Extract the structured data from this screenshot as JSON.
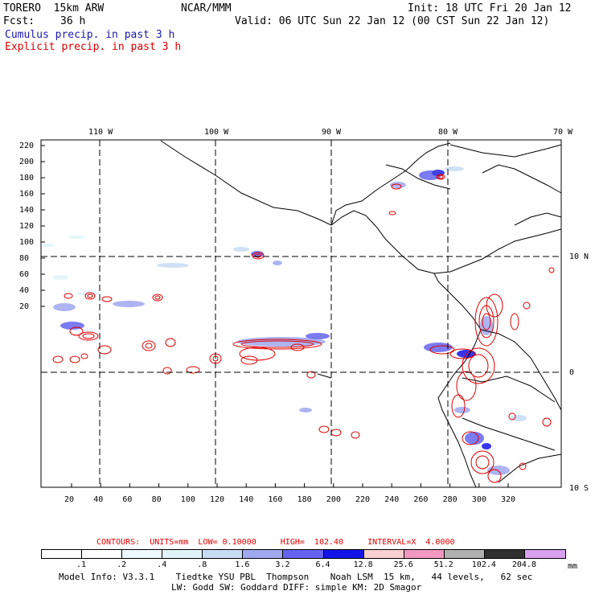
{
  "header": {
    "model": "TORERO  15km ARW",
    "org": "NCAR/MMM",
    "init": "Init: 18 UTC Fri 20 Jan 12",
    "fcst_label": "Fcst:",
    "fcst_hours": "36 h",
    "valid": "Valid: 06 UTC Sun 22 Jan 12 (00 CST Sun 22 Jan 12)",
    "line_blue": "Cumulus precip. in past 3 h",
    "line_red": "Explicit precip. in past 3 h"
  },
  "colors": {
    "blue_text": "#1a1aaa",
    "red_text": "#dd0000",
    "contour": "#dd0000",
    "coast": "#000000"
  },
  "map": {
    "top_lon_labels": [
      "110 W",
      "100 W",
      "90 W",
      "80 W",
      "70 W"
    ],
    "right_lat_labels": [
      "10 N",
      "0",
      "10 S"
    ],
    "y_ticks": [
      "220",
      "200",
      "180",
      "160",
      "140",
      "120",
      "100",
      "80",
      "60",
      "40",
      "20"
    ],
    "x_ticks": [
      "20",
      "40",
      "60",
      "80",
      "100",
      "120",
      "140",
      "160",
      "180",
      "200",
      "220",
      "240",
      "260",
      "280",
      "300",
      "320"
    ]
  },
  "contour_info": {
    "text": "CONTOURS:  UNITS=mm  LOW= 0.10000     HIGH=  102.40     INTERVAL=X  4.0000"
  },
  "colorbar": {
    "labels": [
      ".1",
      ".2",
      ".4",
      ".8",
      "1.6",
      "3.2",
      "6.4",
      "12.8",
      "25.6",
      "51.2",
      "102.4",
      "204.8"
    ],
    "units": "mm",
    "colors": [
      "#ffffff",
      "#ffffff",
      "#f0f8ff",
      "#e0f4f8",
      "#c8dcf4",
      "#a0a8f0",
      "#6464f0",
      "#1414e8",
      "#f8d0d0",
      "#f098c0",
      "#b0b0b0",
      "#303030",
      "#d8a0f0"
    ]
  },
  "footer": {
    "line1": "Model Info: V3.3.1    Tiedtke YSU PBL  Thompson    Noah LSM  15 km,   44 levels,   62 sec",
    "line2": "LW: Godd SW: Goddard DIFF: simple KM: 2D Smagor"
  }
}
